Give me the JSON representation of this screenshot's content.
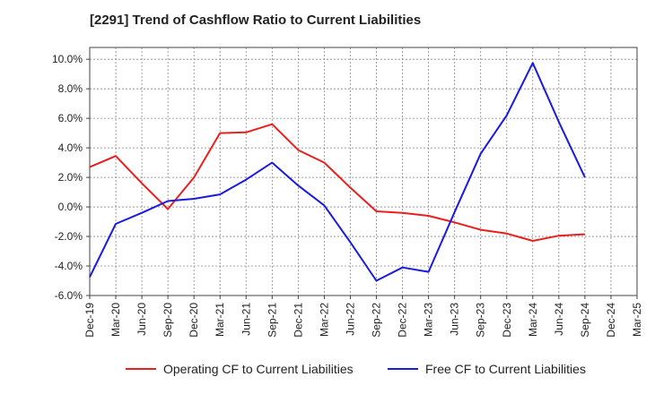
{
  "chart_data": {
    "type": "line",
    "title": "[2291]  Trend of Cashflow Ratio to Current Liabilities",
    "xlabel": "",
    "ylabel": "",
    "x": [
      "Dec-19",
      "Mar-20",
      "Jun-20",
      "Sep-20",
      "Dec-20",
      "Mar-21",
      "Jun-21",
      "Sep-21",
      "Dec-21",
      "Mar-22",
      "Jun-22",
      "Sep-22",
      "Dec-22",
      "Mar-23",
      "Jun-23",
      "Sep-23",
      "Dec-23",
      "Mar-24",
      "Jun-24",
      "Sep-24",
      "Dec-24",
      "Mar-25"
    ],
    "yticks": [
      "10.0%",
      "8.0%",
      "6.0%",
      "4.0%",
      "2.0%",
      "0.0%",
      "-2.0%",
      "-4.0%",
      "-6.0%"
    ],
    "ylim": [
      -6,
      10.8
    ],
    "grid": true,
    "legend_position": "bottom",
    "series": [
      {
        "name": "Operating CF to Current Liabilities",
        "color": "#e8201e",
        "values": [
          2.7,
          3.45,
          1.6,
          -0.15,
          2.0,
          5.0,
          5.05,
          5.6,
          3.85,
          3.0,
          1.3,
          -0.3,
          -0.4,
          -0.6,
          -1.05,
          -1.55,
          -1.8,
          -2.3,
          -1.95,
          -1.85,
          null,
          null
        ]
      },
      {
        "name": "Free CF to Current Liabilities",
        "color": "#1a1ae0",
        "values": [
          -4.75,
          -1.15,
          -0.4,
          0.4,
          0.55,
          0.85,
          1.85,
          3.0,
          1.45,
          0.1,
          -2.4,
          -5.0,
          -4.1,
          -4.4,
          -0.35,
          3.6,
          6.2,
          9.75,
          5.75,
          2.0,
          null,
          null
        ]
      }
    ]
  }
}
